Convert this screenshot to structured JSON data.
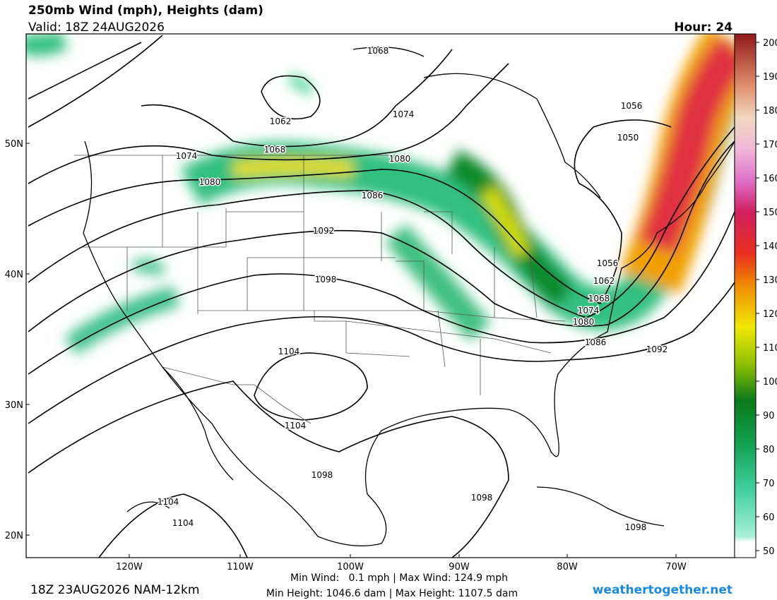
{
  "header": {
    "title": "250mb Wind (mph), Heights (dam)",
    "valid": "Valid: 18Z 24AUG2026",
    "hour": "Hour: 24"
  },
  "map": {
    "latitude_labels": [
      "50N",
      "40N",
      "30N",
      "20N"
    ],
    "longitude_labels": [
      "120W",
      "110W",
      "100W",
      "90W",
      "80W",
      "70W"
    ],
    "contour_labels": [
      "1068",
      "1062",
      "1074",
      "1068",
      "1074",
      "1080",
      "1056",
      "1050",
      "1080",
      "1086",
      "1092",
      "1056",
      "1098",
      "1062",
      "1068",
      "1074",
      "1080",
      "1086",
      "1092",
      "1104",
      "1104",
      "1098",
      "1098",
      "1104",
      "1104",
      "1098"
    ]
  },
  "colorbar": {
    "labels": [
      "200",
      "190",
      "180",
      "170",
      "160",
      "150",
      "140",
      "130",
      "120",
      "110",
      "100",
      "90",
      "80",
      "70",
      "60",
      "50"
    ]
  },
  "footer": {
    "wind_stats": "Min Wind:   0.1 mph | Max Wind: 124.9 mph",
    "height_stats": "Min Height: 1046.6 dam | Max Height: 1107.5 dam",
    "run": "18Z 23AUG2026 NAM-12km",
    "source": "weathertogether.net"
  }
}
